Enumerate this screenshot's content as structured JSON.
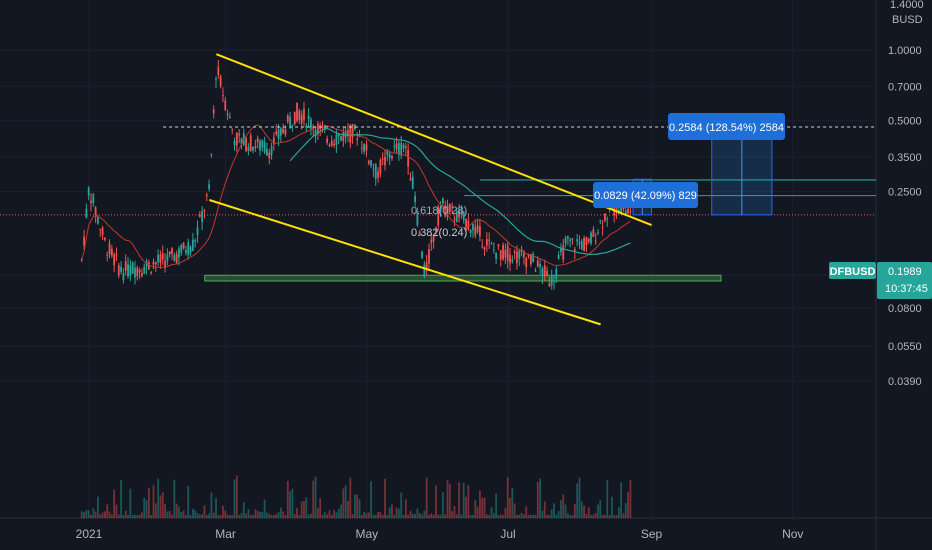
{
  "chart_data": {
    "type": "candlestick",
    "symbol": "DFBUSD",
    "currency": "BUSD",
    "top_scale_label": "1.4000",
    "x_ticks": [
      "2021",
      "Mar",
      "May",
      "Jul",
      "Sep",
      "Nov"
    ],
    "y_scale": "log",
    "y_ticks": [
      {
        "label": "1.0000",
        "value": 1.0
      },
      {
        "label": "0.7000",
        "value": 0.7
      },
      {
        "label": "0.5000",
        "value": 0.5
      },
      {
        "label": "0.3500",
        "value": 0.35
      },
      {
        "label": "0.2500",
        "value": 0.25
      },
      {
        "label": "0.1100",
        "value": 0.11
      },
      {
        "label": "0.0800",
        "value": 0.08
      },
      {
        "label": "0.0550",
        "value": 0.055
      },
      {
        "label": "0.0390",
        "value": 0.039
      }
    ],
    "last_price": {
      "label": "0.1989",
      "value": 0.1989,
      "countdown": "10:37:45"
    },
    "annotations": {
      "fib_618": "0.618(0.28)",
      "fib_382": "0.382(0.24)",
      "target_1": "0.0829 (42.09%) 829",
      "target_2": "0.2584 (128.54%) 2584"
    },
    "price_path": [
      {
        "date": "2020-12-28",
        "close": 0.105
      },
      {
        "date": "2021-01-01",
        "close": 0.26
      },
      {
        "date": "2021-01-08",
        "close": 0.15
      },
      {
        "date": "2021-01-15",
        "close": 0.115
      },
      {
        "date": "2021-01-25",
        "close": 0.12
      },
      {
        "date": "2021-02-05",
        "close": 0.13
      },
      {
        "date": "2021-02-15",
        "close": 0.15
      },
      {
        "date": "2021-02-22",
        "close": 0.25
      },
      {
        "date": "2021-02-25",
        "close": 0.85
      },
      {
        "date": "2021-03-05",
        "close": 0.42
      },
      {
        "date": "2021-03-20",
        "close": 0.38
      },
      {
        "date": "2021-04-01",
        "close": 0.55
      },
      {
        "date": "2021-04-15",
        "close": 0.42
      },
      {
        "date": "2021-04-27",
        "close": 0.45
      },
      {
        "date": "2021-05-05",
        "close": 0.3
      },
      {
        "date": "2021-05-12",
        "close": 0.37
      },
      {
        "date": "2021-05-18",
        "close": 0.39
      },
      {
        "date": "2021-05-22",
        "close": 0.23
      },
      {
        "date": "2021-05-26",
        "close": 0.11
      },
      {
        "date": "2021-06-02",
        "close": 0.22
      },
      {
        "date": "2021-06-15",
        "close": 0.18
      },
      {
        "date": "2021-06-25",
        "close": 0.14
      },
      {
        "date": "2021-07-10",
        "close": 0.13
      },
      {
        "date": "2021-07-20",
        "close": 0.105
      },
      {
        "date": "2021-07-26",
        "close": 0.15
      },
      {
        "date": "2021-08-05",
        "close": 0.15
      },
      {
        "date": "2021-08-12",
        "close": 0.2
      },
      {
        "date": "2021-08-18",
        "close": 0.22
      },
      {
        "date": "2021-08-23",
        "close": 0.1989
      }
    ],
    "reference_lines": {
      "dashed_resistance": 0.47,
      "fib_618_level": 0.28,
      "fib_382_level": 0.24,
      "support_zone": [
        0.104,
        0.11
      ]
    }
  }
}
